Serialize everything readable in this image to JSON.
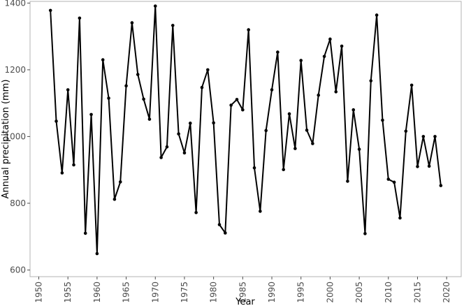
{
  "chart_data": {
    "type": "line",
    "title": "",
    "xlabel": "Year",
    "ylabel": "Annual precipitation (mm)",
    "xlim": [
      1948.5,
      2022.5
    ],
    "ylim": [
      580,
      1405
    ],
    "xticks": [
      1950,
      1955,
      1960,
      1965,
      1970,
      1975,
      1980,
      1985,
      1990,
      1995,
      2000,
      2005,
      2010,
      2015,
      2020
    ],
    "yticks": [
      600,
      800,
      1000,
      1200,
      1400
    ],
    "grid": false,
    "legend": "none",
    "series": [
      {
        "color": "#000000",
        "marker": "dot",
        "points": [
          [
            1952,
            1378
          ],
          [
            1953,
            1046
          ],
          [
            1954,
            891
          ],
          [
            1955,
            1140
          ],
          [
            1956,
            915
          ],
          [
            1957,
            1355
          ],
          [
            1958,
            710
          ],
          [
            1959,
            1066
          ],
          [
            1960,
            649
          ],
          [
            1961,
            1230
          ],
          [
            1962,
            1115
          ],
          [
            1963,
            812
          ],
          [
            1964,
            864
          ],
          [
            1965,
            1152
          ],
          [
            1966,
            1341
          ],
          [
            1967,
            1186
          ],
          [
            1968,
            1112
          ],
          [
            1969,
            1052
          ],
          [
            1970,
            1391
          ],
          [
            1971,
            937
          ],
          [
            1972,
            969
          ],
          [
            1973,
            1333
          ],
          [
            1974,
            1008
          ],
          [
            1975,
            951
          ],
          [
            1976,
            1040
          ],
          [
            1977,
            772
          ],
          [
            1978,
            1147
          ],
          [
            1979,
            1200
          ],
          [
            1980,
            1041
          ],
          [
            1981,
            736
          ],
          [
            1982,
            711
          ],
          [
            1983,
            1094
          ],
          [
            1984,
            1111
          ],
          [
            1985,
            1080
          ],
          [
            1986,
            1320
          ],
          [
            1987,
            906
          ],
          [
            1988,
            776
          ],
          [
            1989,
            1018
          ],
          [
            1990,
            1140
          ],
          [
            1991,
            1253
          ],
          [
            1992,
            901
          ],
          [
            1993,
            1068
          ],
          [
            1994,
            964
          ],
          [
            1995,
            1228
          ],
          [
            1996,
            1019
          ],
          [
            1997,
            979
          ],
          [
            1998,
            1124
          ],
          [
            1999,
            1240
          ],
          [
            2000,
            1292
          ],
          [
            2001,
            1134
          ],
          [
            2002,
            1271
          ],
          [
            2003,
            866
          ],
          [
            2004,
            1080
          ],
          [
            2005,
            962
          ],
          [
            2006,
            709
          ],
          [
            2007,
            1167
          ],
          [
            2008,
            1364
          ],
          [
            2009,
            1049
          ],
          [
            2010,
            872
          ],
          [
            2011,
            863
          ],
          [
            2012,
            756
          ],
          [
            2013,
            1016
          ],
          [
            2014,
            1154
          ],
          [
            2015,
            910
          ],
          [
            2016,
            1000
          ],
          [
            2017,
            911
          ],
          [
            2018,
            1000
          ],
          [
            2019,
            853
          ]
        ]
      }
    ]
  }
}
